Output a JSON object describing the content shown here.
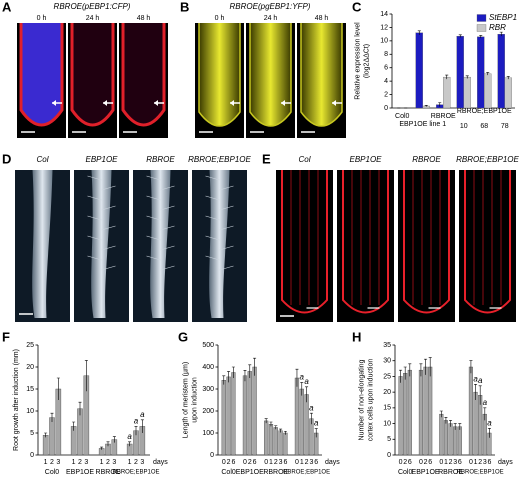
{
  "panels": {
    "A": {
      "letter": "A",
      "title": "RBROE(pEBP1:CFP)",
      "times": [
        "0 h",
        "24 h",
        "48 h"
      ]
    },
    "B": {
      "letter": "B",
      "title": "RBROE(pgEBP1:YFP)",
      "times": [
        "0 h",
        "24 h",
        "48 h"
      ]
    },
    "D": {
      "letter": "D",
      "labels": [
        "Col",
        "EBP1OE",
        "RBROE",
        "RBROE;EBP1OE"
      ]
    },
    "E": {
      "letter": "E",
      "labels": [
        "Col",
        "EBP1OE",
        "RBROE",
        "RBROE;EBP1OE"
      ]
    }
  },
  "chart_data": [
    {
      "letter": "C",
      "type": "bar",
      "ylabel": [
        "Relative expression level",
        "(log2ΔΔCt)"
      ],
      "categories": [
        "Col0",
        "EBP1OE line 1",
        "RBROE",
        "10",
        "68",
        "78"
      ],
      "group_label": "RBROE;EBP1OE",
      "series": [
        {
          "name": "StEBP1",
          "color": "#1c1cc0",
          "values": [
            0,
            11.2,
            0.5,
            10.7,
            10.6,
            11.0
          ],
          "errors": [
            0,
            0.3,
            0.3,
            0.2,
            0.2,
            0.3
          ]
        },
        {
          "name": "RBR",
          "color": "#c8c8c8",
          "values": [
            0,
            0.3,
            4.6,
            4.6,
            5.1,
            4.5
          ],
          "errors": [
            0,
            0.1,
            0.3,
            0.2,
            0.2,
            0.2
          ]
        }
      ],
      "ylim": [
        0,
        14
      ],
      "yticks": [
        0,
        2,
        4,
        6,
        8,
        10,
        12,
        14
      ],
      "legend": "top-right"
    },
    {
      "letter": "F",
      "type": "grouped",
      "ylabel": [
        "Root growth after induction (mm)"
      ],
      "xlabel": "days",
      "color": "#a6a6a6",
      "ylim": [
        0,
        25
      ],
      "yticks": [
        0,
        5,
        10,
        15,
        20,
        25
      ],
      "groups": [
        {
          "name": "Col0",
          "categories": [
            "1",
            "2",
            "3"
          ],
          "values": [
            4.5,
            8.5,
            15
          ],
          "errors": [
            0.5,
            1,
            2.5
          ]
        },
        {
          "name": "EBP1OE",
          "categories": [
            "1",
            "2",
            "3"
          ],
          "values": [
            6.5,
            10.5,
            18
          ],
          "errors": [
            1,
            1.5,
            3.5
          ]
        },
        {
          "name": "RBROE",
          "categories": [
            "1",
            "2",
            "3"
          ],
          "values": [
            1.5,
            2.5,
            3.5
          ],
          "errors": [
            0.3,
            0.5,
            0.7
          ]
        },
        {
          "name": "RBROE;EBP1OE",
          "categories": [
            "1",
            "2",
            "3"
          ],
          "values": [
            2.5,
            5.5,
            6.5
          ],
          "errors": [
            0.5,
            1,
            1.5
          ],
          "annotations": [
            "a",
            "a",
            "a"
          ]
        }
      ]
    },
    {
      "letter": "G",
      "type": "grouped",
      "ylabel": [
        "Length of meristem (µm)",
        "upon induction"
      ],
      "xlabel": "days",
      "color": "#a6a6a6",
      "ylim": [
        0,
        500
      ],
      "yticks": [
        0,
        100,
        200,
        300,
        400,
        500
      ],
      "groups": [
        {
          "name": "Col0",
          "categories": [
            "0",
            "2",
            "6"
          ],
          "values": [
            340,
            355,
            375
          ],
          "errors": [
            20,
            25,
            25
          ]
        },
        {
          "name": "EBP1OE",
          "categories": [
            "0",
            "2",
            "6"
          ],
          "values": [
            360,
            380,
            400
          ],
          "errors": [
            25,
            30,
            40
          ]
        },
        {
          "name": "RBROE",
          "categories": [
            "0",
            "1",
            "2",
            "3",
            "6"
          ],
          "values": [
            155,
            140,
            125,
            110,
            100
          ],
          "errors": [
            10,
            10,
            8,
            8,
            8
          ]
        },
        {
          "name": "RBROE;EBP1OE",
          "categories": [
            "0",
            "1",
            "2",
            "3",
            "6"
          ],
          "values": [
            350,
            300,
            275,
            165,
            100
          ],
          "errors": [
            40,
            30,
            35,
            25,
            20
          ],
          "annotations": [
            null,
            "a",
            "a",
            "a",
            "a"
          ]
        }
      ]
    },
    {
      "letter": "H",
      "type": "grouped",
      "ylabel": [
        "Number of non-elongating",
        "cortex cells upon induction"
      ],
      "xlabel": "days",
      "color": "#a6a6a6",
      "ylim": [
        0,
        35
      ],
      "yticks": [
        0,
        5,
        10,
        15,
        20,
        25,
        30,
        35
      ],
      "groups": [
        {
          "name": "Col0",
          "categories": [
            "0",
            "2",
            "6"
          ],
          "values": [
            25,
            26,
            27
          ],
          "errors": [
            2,
            2,
            2
          ]
        },
        {
          "name": "EBP1OE",
          "categories": [
            "0",
            "2",
            "6"
          ],
          "values": [
            27,
            28,
            28
          ],
          "errors": [
            2,
            2.5,
            3
          ]
        },
        {
          "name": "RBROE",
          "categories": [
            "0",
            "1",
            "2",
            "3",
            "6"
          ],
          "values": [
            13,
            11,
            10,
            9,
            9
          ],
          "errors": [
            1,
            1,
            1,
            1,
            1
          ]
        },
        {
          "name": "RBROE;EBP1OE",
          "categories": [
            "0",
            "1",
            "2",
            "3",
            "6"
          ],
          "values": [
            28,
            20,
            19,
            13,
            7
          ],
          "errors": [
            2,
            2.5,
            3,
            2,
            1.5
          ],
          "annotations": [
            null,
            "a",
            "a",
            "a",
            "a"
          ]
        }
      ]
    }
  ]
}
